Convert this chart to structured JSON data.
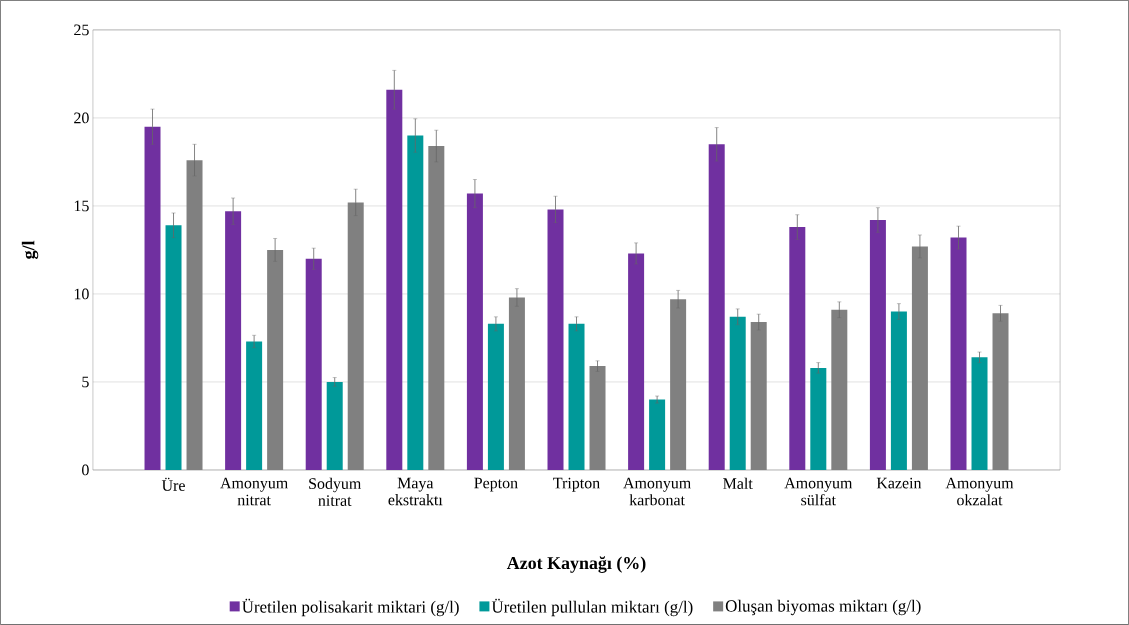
{
  "chart_data": {
    "type": "bar",
    "xlabel": "Azot Kaynağı (%)",
    "ylabel": "g/l",
    "categories": [
      "Üre",
      "Amonyum nitrat",
      "Sodyum nitrat",
      "Maya ekstraktı",
      "Pepton",
      "Tripton",
      "Amonyum karbonat",
      "Malt",
      "Amonyum sülfat",
      "Kazein",
      "Amonyum okzalat"
    ],
    "series": [
      {
        "name": "Üretilen polisakarit miktari (g/l)",
        "color": "#7030a0",
        "values": [
          19.5,
          14.7,
          12.0,
          21.6,
          15.7,
          14.8,
          12.3,
          18.5,
          13.8,
          14.2,
          13.2
        ],
        "errors": [
          1.0,
          0.75,
          0.6,
          1.1,
          0.8,
          0.75,
          0.6,
          0.95,
          0.7,
          0.7,
          0.65
        ]
      },
      {
        "name": "Üretilen pullulan miktarı (g/l)",
        "color": "#009999",
        "values": [
          13.9,
          7.3,
          5.0,
          19.0,
          8.3,
          8.3,
          4.0,
          8.7,
          5.8,
          9.0,
          6.4
        ],
        "errors": [
          0.7,
          0.35,
          0.25,
          0.95,
          0.4,
          0.4,
          0.2,
          0.45,
          0.3,
          0.45,
          0.3
        ]
      },
      {
        "name": "Oluşan biyomas miktarı (g/l)",
        "color": "#808080",
        "values": [
          17.6,
          12.5,
          15.2,
          18.4,
          9.8,
          5.9,
          9.7,
          8.4,
          9.1,
          12.7,
          8.9
        ],
        "errors": [
          0.9,
          0.65,
          0.75,
          0.9,
          0.5,
          0.3,
          0.5,
          0.45,
          0.45,
          0.65,
          0.45
        ]
      }
    ],
    "ylim": [
      0,
      25
    ],
    "yticks": [
      0,
      5,
      10,
      15,
      20,
      25
    ],
    "grid": "y",
    "legend": "bottom"
  }
}
